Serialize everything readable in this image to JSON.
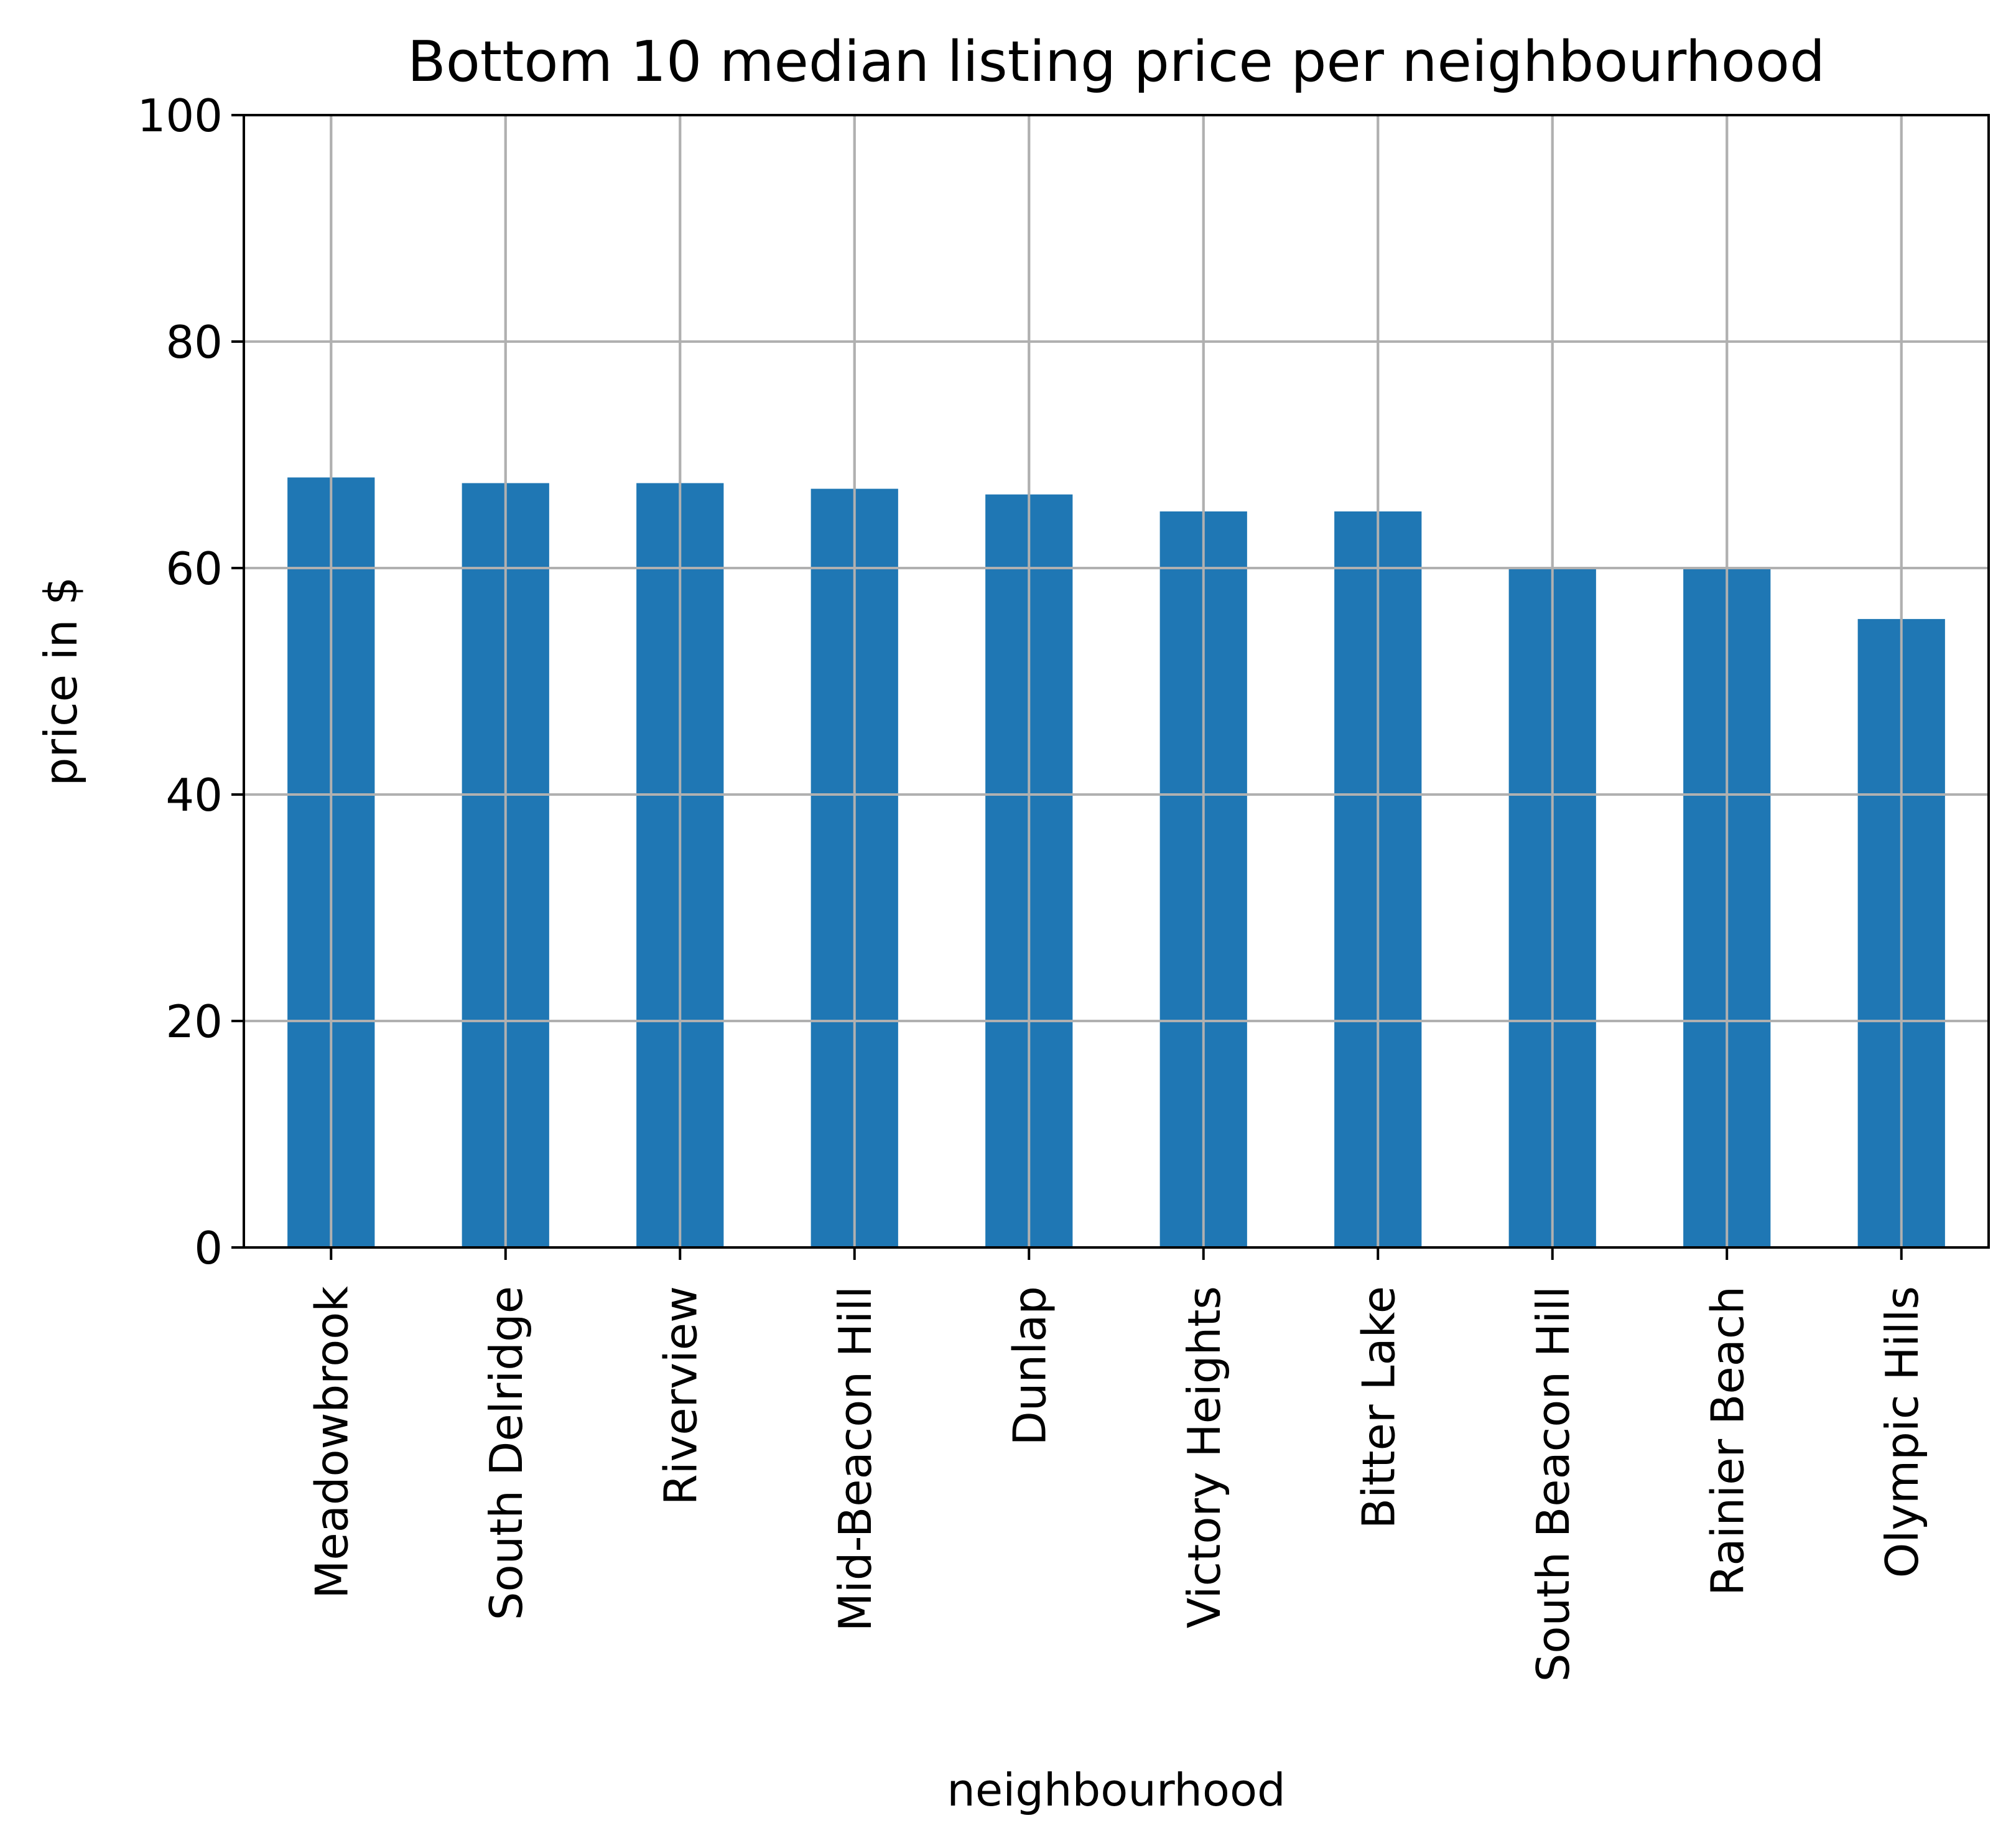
{
  "chart_data": {
    "type": "bar",
    "title": "Bottom 10 median listing price per neighbourhood",
    "xlabel": "neighbourhood",
    "ylabel": "price in $",
    "categories": [
      "Meadowbrook",
      "South Delridge",
      "Riverview",
      "Mid-Beacon Hill",
      "Dunlap",
      "Victory Heights",
      "Bitter Lake",
      "South Beacon Hill",
      "Rainier Beach",
      "Olympic Hills"
    ],
    "values": [
      68,
      67.5,
      67.5,
      67,
      66.5,
      65,
      65,
      60,
      60,
      55.5
    ],
    "ylim": [
      0,
      100
    ],
    "yticks": [
      0,
      20,
      40,
      60,
      80,
      100
    ],
    "grid": true,
    "legend": false,
    "bar_color": "#1f77b4",
    "grid_color": "#b0b0b0"
  }
}
